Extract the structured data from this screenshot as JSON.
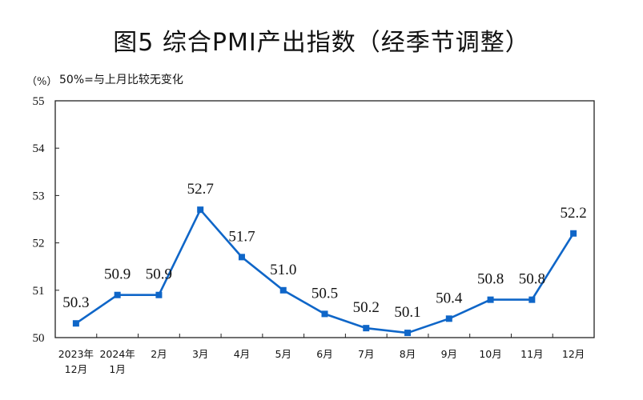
{
  "title": "图5  综合PMI产出指数（经季节调整）",
  "unit_label": "（%）",
  "note": "50%=与上月比较无变化",
  "colors": {
    "line": "#0f66c8",
    "marker": "#0f66c8",
    "axis": "#222222"
  },
  "chart_data": {
    "type": "line",
    "title": "图5  综合PMI产出指数（经季节调整）",
    "xlabel": "",
    "ylabel": "（%）",
    "annotation": "50%=与上月比较无变化",
    "ylim": [
      50,
      55
    ],
    "yticks": [
      50,
      51,
      52,
      53,
      54,
      55
    ],
    "grid": false,
    "legend": null,
    "categories": [
      [
        "2023年",
        "12月"
      ],
      [
        "2024年",
        "1月"
      ],
      [
        "2月"
      ],
      [
        "3月"
      ],
      [
        "4月"
      ],
      [
        "5月"
      ],
      [
        "6月"
      ],
      [
        "7月"
      ],
      [
        "8月"
      ],
      [
        "9月"
      ],
      [
        "10月"
      ],
      [
        "11月"
      ],
      [
        "12月"
      ]
    ],
    "series": [
      {
        "name": "综合PMI产出指数",
        "values": [
          50.3,
          50.9,
          50.9,
          52.7,
          51.7,
          51.0,
          50.5,
          50.2,
          50.1,
          50.4,
          50.8,
          50.8,
          52.2
        ],
        "labels": [
          "50.3",
          "50.9",
          "50.9",
          "52.7",
          "51.7",
          "51.0",
          "50.5",
          "50.2",
          "50.1",
          "50.4",
          "50.8",
          "50.8",
          "52.2"
        ]
      }
    ]
  }
}
